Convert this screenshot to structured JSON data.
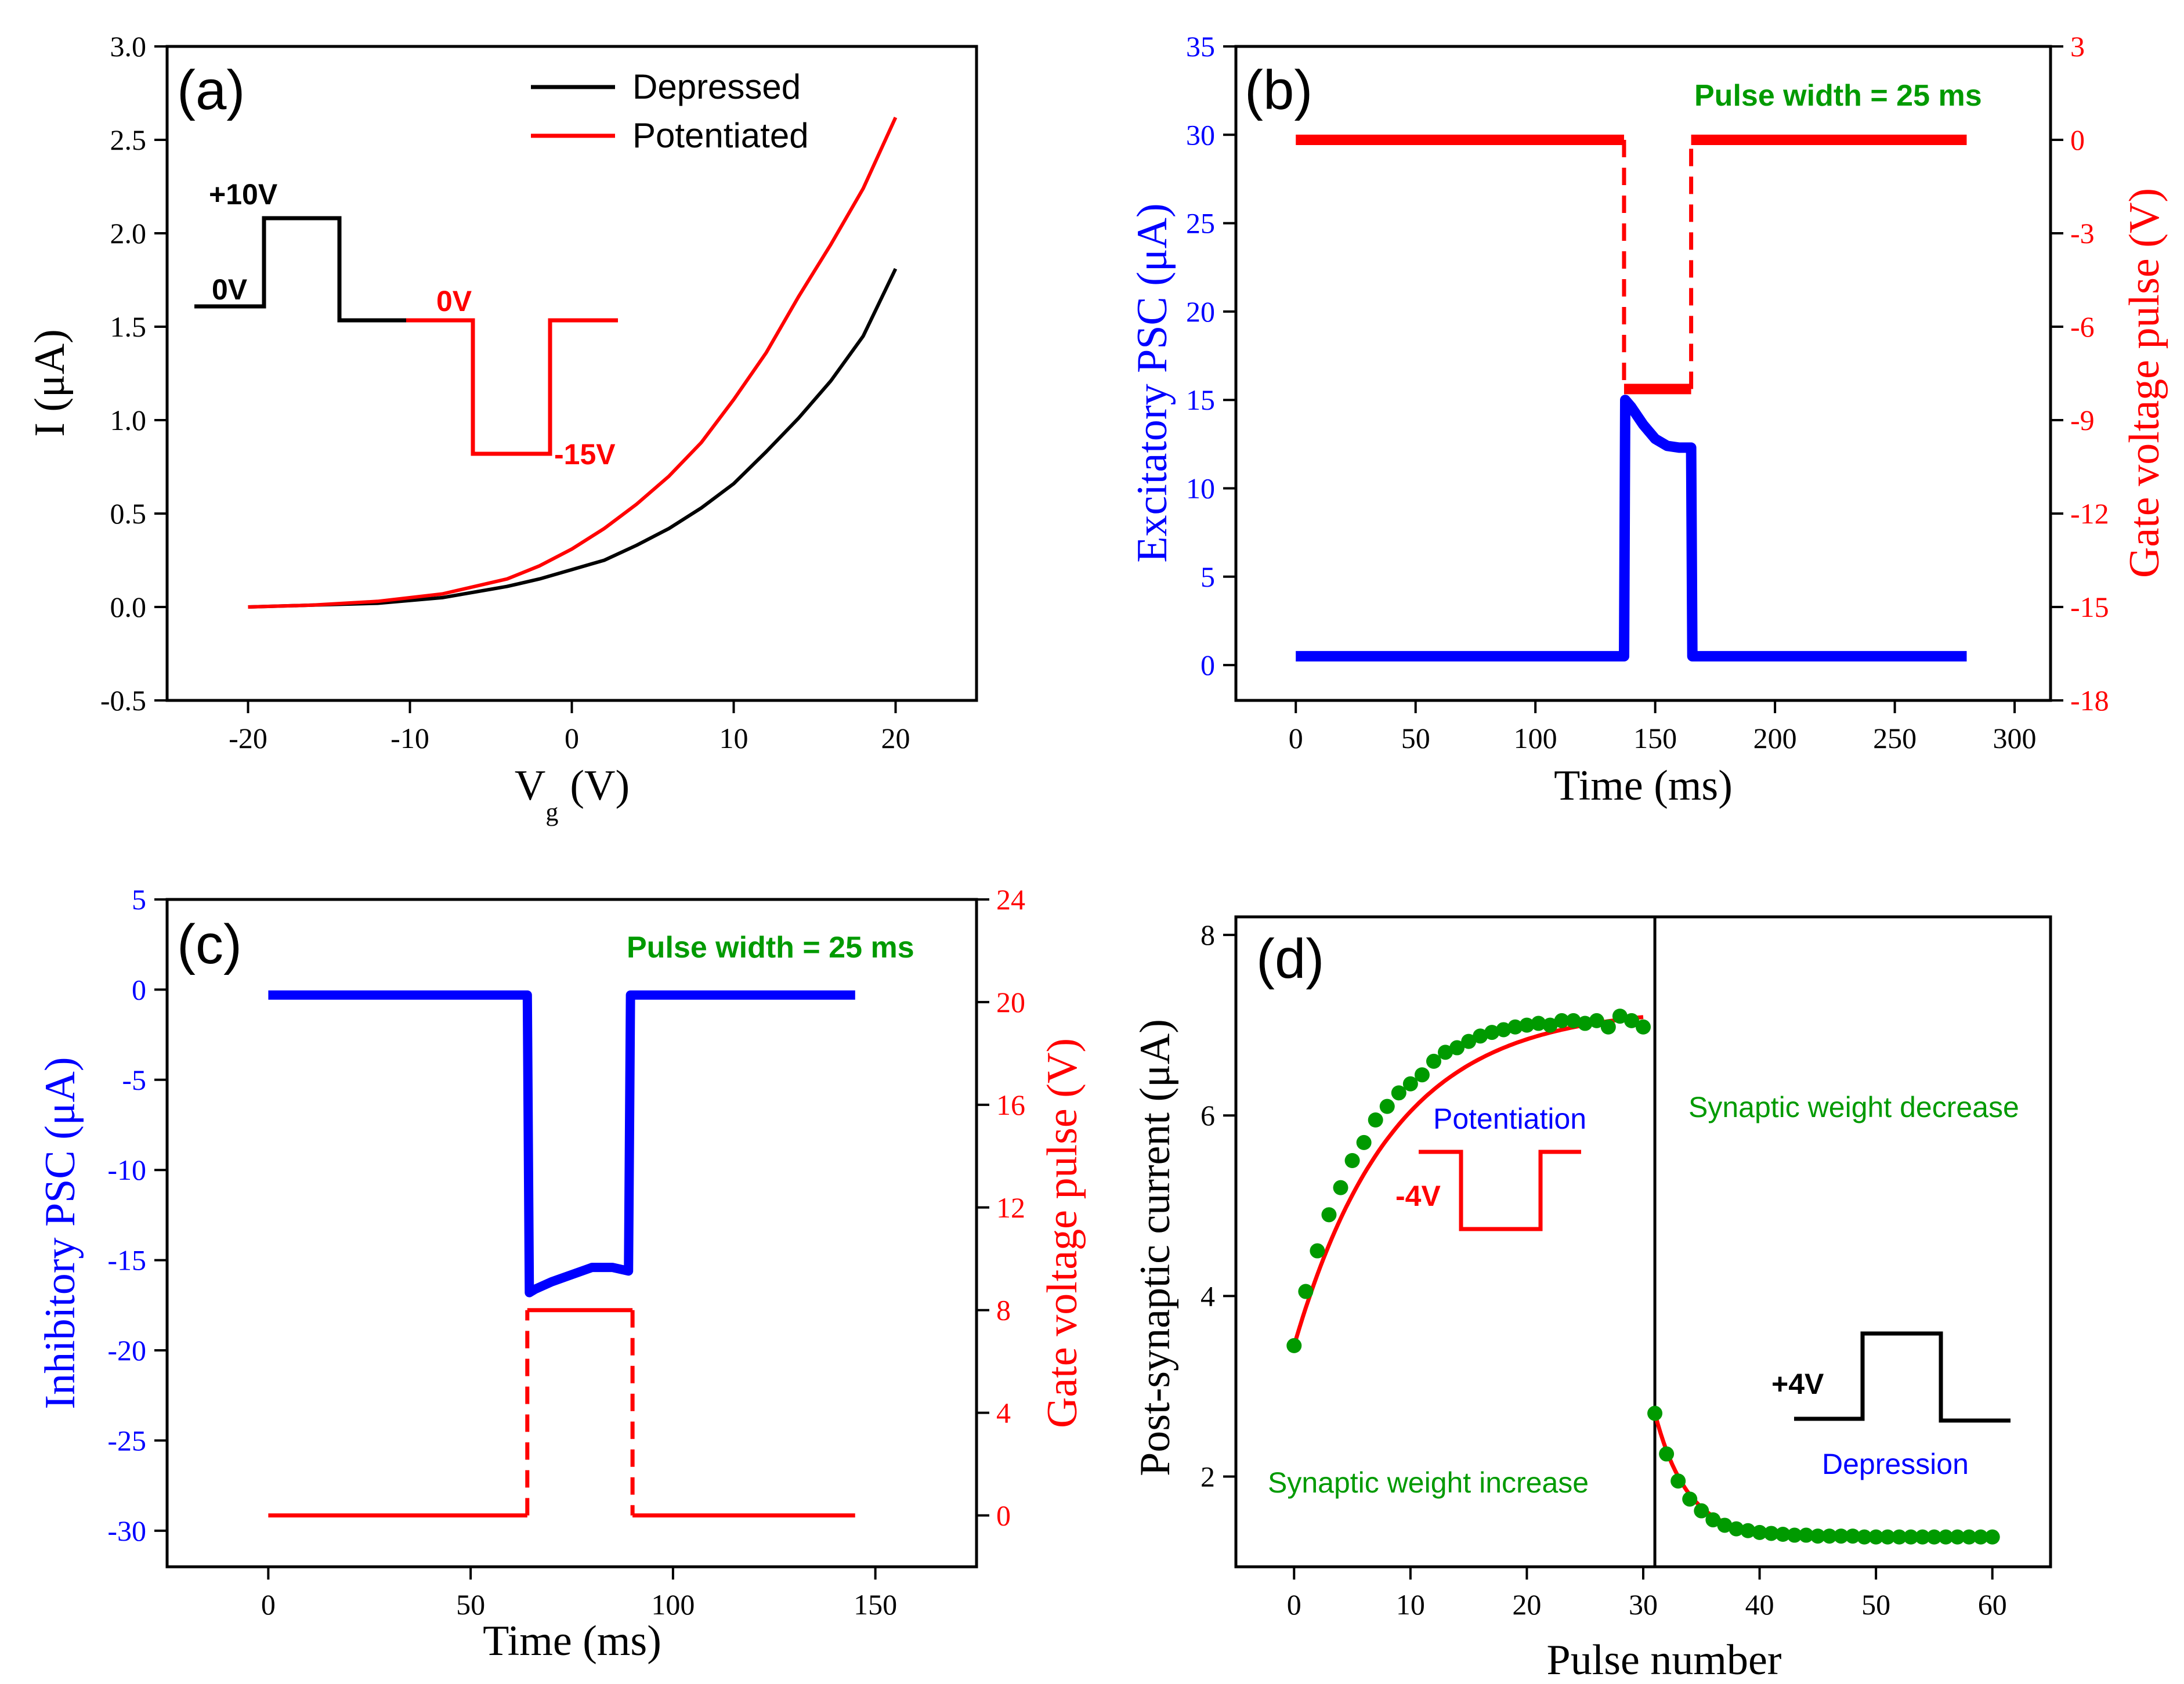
{
  "colors": {
    "black": "#000000",
    "red": "#ff0000",
    "blue": "#0000ff",
    "green": "#009a00"
  },
  "chart_data": [
    {
      "id": "a",
      "type": "line",
      "panel_label": "(a)",
      "xlabel_main": "V",
      "xlabel_sub": "g",
      "xlabel_unit": "(V)",
      "ylabel": "I (μA)",
      "xlim": [
        -25,
        25
      ],
      "ylim": [
        -0.5,
        3.0
      ],
      "xticks": [
        -20,
        -10,
        0,
        10,
        20
      ],
      "yticks": [
        -0.5,
        0.0,
        0.5,
        1.0,
        1.5,
        2.0,
        2.5,
        3.0
      ],
      "legend_position": "top-right",
      "series": [
        {
          "name": "Depressed",
          "color": "#000000",
          "x": [
            -20,
            -16,
            -12,
            -8,
            -4,
            -2,
            0,
            2,
            4,
            6,
            8,
            10,
            12,
            14,
            16,
            18,
            20
          ],
          "y": [
            0.0,
            0.01,
            0.02,
            0.05,
            0.11,
            0.15,
            0.2,
            0.25,
            0.33,
            0.42,
            0.53,
            0.66,
            0.83,
            1.01,
            1.21,
            1.45,
            1.81
          ]
        },
        {
          "name": "Potentiated",
          "color": "#ff0000",
          "x": [
            -20,
            -16,
            -12,
            -8,
            -4,
            -2,
            0,
            2,
            4,
            6,
            8,
            10,
            12,
            14,
            16,
            18,
            20
          ],
          "y": [
            0.0,
            0.01,
            0.03,
            0.07,
            0.15,
            0.22,
            0.31,
            0.42,
            0.55,
            0.7,
            0.88,
            1.11,
            1.36,
            1.66,
            1.94,
            2.24,
            2.62
          ]
        }
      ],
      "inset": {
        "labels": [
          "+10V",
          "0V",
          "0V",
          "-15V"
        ]
      }
    },
    {
      "id": "b",
      "type": "line",
      "panel_label": "(b)",
      "xlabel": "Time (ms)",
      "ylabel_left": "Excitatory PSC (μA)",
      "ylabel_right": "Gate voltage pulse (V)",
      "annotation": "Pulse width = 25 ms",
      "xlim": [
        -25,
        315
      ],
      "ylim_left": [
        -2,
        35
      ],
      "ylim_right": [
        -18,
        3
      ],
      "xticks": [
        0,
        50,
        100,
        150,
        200,
        250,
        300
      ],
      "yticks_left": [
        0,
        5,
        10,
        15,
        20,
        25,
        30,
        35
      ],
      "yticks_right": [
        3,
        0,
        -3,
        -6,
        -9,
        -12,
        -15,
        -18
      ],
      "series": [
        {
          "name": "Excitatory PSC",
          "axis": "left",
          "color": "#0000ff",
          "x": [
            0,
            137,
            137.5,
            140,
            145,
            150,
            155,
            160,
            164,
            165,
            165.5,
            280
          ],
          "y": [
            0.5,
            0.5,
            15.0,
            14.6,
            13.6,
            12.8,
            12.4,
            12.3,
            12.3,
            12.3,
            0.5,
            0.5
          ]
        },
        {
          "name": "Gate voltage pulse",
          "axis": "right",
          "color": "#ff0000",
          "x": [
            0,
            137,
            137,
            165,
            165,
            280
          ],
          "y": [
            0,
            0,
            -8,
            -8,
            0,
            0
          ]
        }
      ]
    },
    {
      "id": "c",
      "type": "line",
      "panel_label": "(c)",
      "xlabel": "Time (ms)",
      "ylabel_left": "Inhibitory PSC (μA)",
      "ylabel_right": "Gate voltage pulse (V)",
      "annotation": "Pulse width = 25 ms",
      "xlim": [
        -25,
        175
      ],
      "ylim_left": [
        -32,
        5
      ],
      "ylim_right": [
        -2,
        24
      ],
      "xticks": [
        0,
        50,
        100,
        150
      ],
      "yticks_left": [
        5,
        0,
        -5,
        -10,
        -15,
        -20,
        -25,
        -30
      ],
      "yticks_right": [
        24,
        20,
        16,
        12,
        8,
        4,
        0
      ],
      "series": [
        {
          "name": "Inhibitory PSC",
          "axis": "left",
          "color": "#0000ff",
          "x": [
            0,
            64,
            64.5,
            66,
            70,
            75,
            80,
            85,
            89,
            89.5,
            145
          ],
          "y": [
            -0.3,
            -0.3,
            -16.8,
            -16.6,
            -16.2,
            -15.8,
            -15.4,
            -15.4,
            -15.6,
            -0.3,
            -0.3
          ]
        },
        {
          "name": "Gate voltage pulse",
          "axis": "right",
          "color": "#ff0000",
          "x": [
            0,
            64,
            64,
            90,
            90,
            145
          ],
          "y": [
            0,
            0,
            8,
            8,
            0,
            0
          ]
        }
      ]
    },
    {
      "id": "d",
      "type": "scatter",
      "panel_label": "(d)",
      "xlabel": "Pulse number",
      "ylabel": "Post-synaptic current (μA)",
      "xlim": [
        -5,
        65
      ],
      "ylim": [
        1.0,
        8.2
      ],
      "xticks": [
        0,
        10,
        20,
        30,
        40,
        50,
        60
      ],
      "yticks": [
        2,
        4,
        6,
        8
      ],
      "divider_x": 31,
      "annotations": {
        "increase": "Synaptic weight increase",
        "decrease": "Synaptic weight decrease",
        "potentiation": "Potentiation",
        "depression": "Depression",
        "neg_pulse": "-4V",
        "pos_pulse": "+4V"
      },
      "series": [
        {
          "name": "Potentiation data",
          "color": "#009a00",
          "x": [
            0,
            1,
            2,
            3,
            4,
            5,
            6,
            7,
            8,
            9,
            10,
            11,
            12,
            13,
            14,
            15,
            16,
            17,
            18,
            19,
            20,
            21,
            22,
            23,
            24,
            25,
            26,
            27,
            28,
            29,
            30
          ],
          "y": [
            3.45,
            4.05,
            4.5,
            4.9,
            5.2,
            5.5,
            5.7,
            5.95,
            6.1,
            6.25,
            6.35,
            6.45,
            6.6,
            6.7,
            6.75,
            6.82,
            6.88,
            6.92,
            6.95,
            6.98,
            7.0,
            7.02,
            7.0,
            7.05,
            7.05,
            7.02,
            7.05,
            6.98,
            7.1,
            7.05,
            6.98
          ]
        },
        {
          "name": "Depression data",
          "color": "#009a00",
          "x": [
            31,
            32,
            33,
            34,
            35,
            36,
            37,
            38,
            39,
            40,
            41,
            42,
            43,
            44,
            45,
            46,
            47,
            48,
            49,
            50,
            51,
            52,
            53,
            54,
            55,
            56,
            57,
            58,
            59,
            60
          ],
          "y": [
            2.7,
            2.25,
            1.95,
            1.75,
            1.62,
            1.52,
            1.46,
            1.42,
            1.4,
            1.38,
            1.37,
            1.36,
            1.35,
            1.35,
            1.34,
            1.34,
            1.34,
            1.34,
            1.33,
            1.33,
            1.33,
            1.33,
            1.33,
            1.33,
            1.33,
            1.33,
            1.33,
            1.33,
            1.33,
            1.33
          ]
        }
      ],
      "fits": [
        {
          "name": "Potentiation fit",
          "color": "#ff0000",
          "x0": 0,
          "x1": 30,
          "a": 7.2,
          "b": 3.75,
          "tau": 8.5
        },
        {
          "name": "Depression fit",
          "color": "#ff0000",
          "x0": 31,
          "x1": 60,
          "a": 1.33,
          "b": -1.37,
          "tau": 2.8
        }
      ]
    }
  ]
}
